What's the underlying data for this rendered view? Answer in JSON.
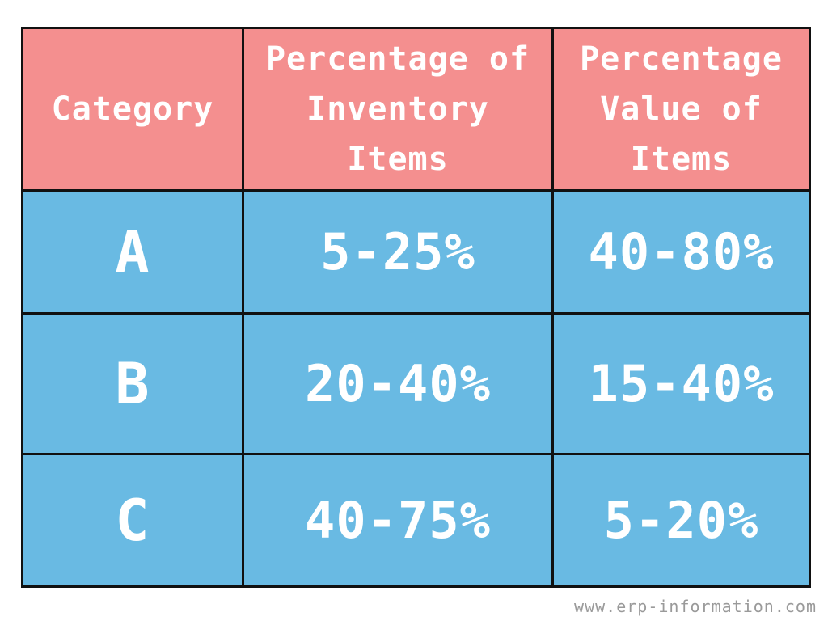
{
  "table": {
    "headers": [
      "Category",
      "Percentage of\nInventory\nItems",
      "Percentage\nValue of\nItems"
    ],
    "rows": [
      {
        "category": "A",
        "inventory_items": "5-25%",
        "value_of_items": "40-80%"
      },
      {
        "category": "B",
        "inventory_items": "20-40%",
        "value_of_items": "15-40%"
      },
      {
        "category": "C",
        "inventory_items": "40-75%",
        "value_of_items": "5-20%"
      }
    ]
  },
  "footer": {
    "watermark": "www.erp-information.com"
  },
  "colors": {
    "header_bg": "#f48f8f",
    "body_bg": "#69bae3",
    "text": "#ffffff",
    "border": "#111111"
  }
}
